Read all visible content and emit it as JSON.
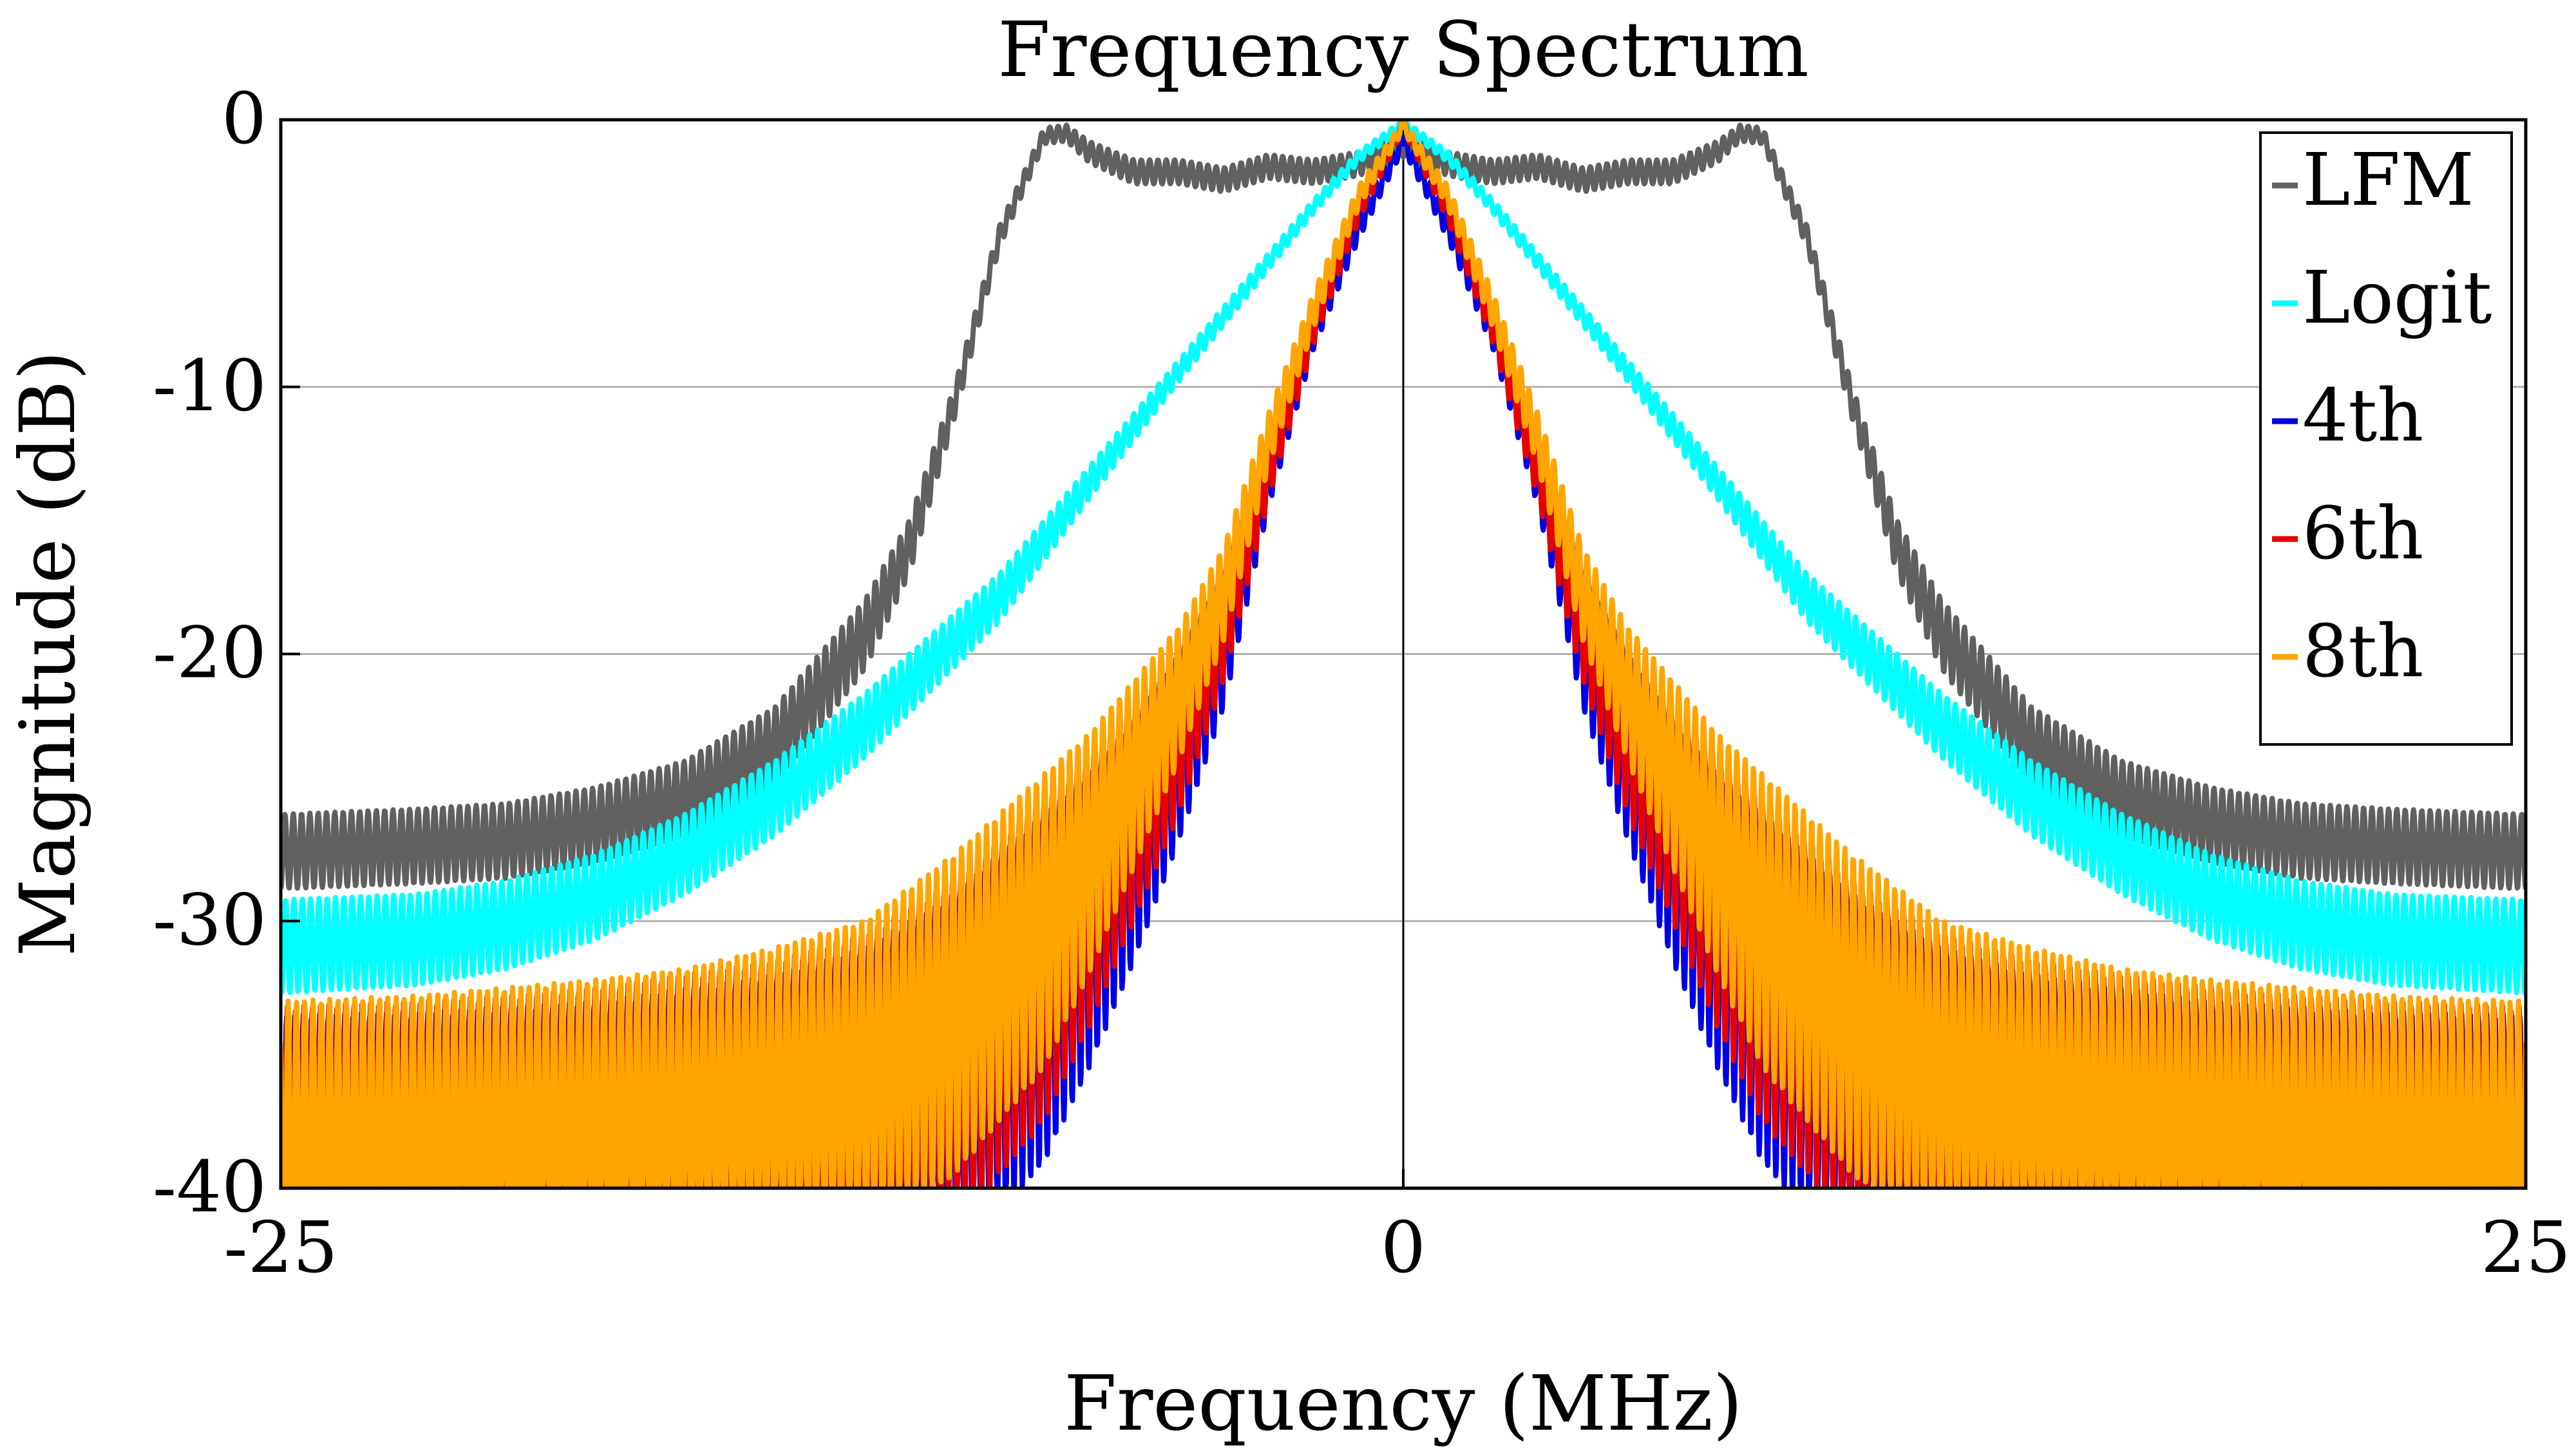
{
  "chart_data": {
    "type": "line",
    "title": "Frequency Spectrum",
    "xlabel": "Frequency (MHz)",
    "ylabel": "Magnitude (dB)",
    "xlim": [
      -25,
      25
    ],
    "ylim": [
      -40,
      0
    ],
    "xticks": [
      -25,
      0,
      25
    ],
    "xtick_labels": [
      "-25",
      "0",
      "25"
    ],
    "yticks": [
      0,
      -10,
      -20,
      -30,
      -40
    ],
    "ytick_labels": [
      "0",
      "-10",
      "-20",
      "-30",
      "-40"
    ],
    "grid": "horizontal",
    "zero_line": "vertical at 0",
    "legend_position": "top-right",
    "series": [
      {
        "name": "LFM",
        "color": "#606060",
        "envelope": {
          "x": [
            0,
            1,
            2,
            3,
            4,
            5,
            6,
            7,
            7.5,
            8,
            9,
            10,
            11,
            12,
            13,
            14,
            15,
            16,
            18,
            20,
            22,
            25
          ],
          "top": [
            -0.5,
            -1.2,
            -1.5,
            -1.3,
            -1.8,
            -1.5,
            -1.5,
            -0.8,
            -0.2,
            -0.3,
            -4,
            -10,
            -15,
            -18,
            -20,
            -22,
            -23,
            -24,
            -25,
            -25.6,
            -25.8,
            -26
          ],
          "ripple": [
            0.9,
            0.9,
            0.9,
            0.9,
            0.9,
            0.9,
            0.9,
            0.8,
            0.6,
            0.6,
            0.8,
            1.2,
            2.0,
            2.6,
            2.8,
            2.8,
            2.8,
            2.8,
            2.8,
            2.8,
            2.8,
            2.8
          ]
        }
      },
      {
        "name": "Logit",
        "color": "#00ffff",
        "envelope": {
          "x": [
            0,
            1,
            2,
            3,
            4,
            5,
            6,
            7,
            8,
            9,
            10,
            12,
            14,
            16,
            18,
            20,
            22,
            25
          ],
          "top": [
            0,
            -1.2,
            -3,
            -5,
            -7,
            -9,
            -11,
            -13,
            -15,
            -17,
            -18.5,
            -21.5,
            -24,
            -26,
            -27.5,
            -28.5,
            -29,
            -29.2
          ],
          "ripple": [
            0.3,
            0.4,
            0.5,
            0.6,
            0.7,
            0.8,
            1.0,
            1.2,
            1.5,
            1.8,
            2.0,
            2.4,
            2.8,
            3.0,
            3.2,
            3.3,
            3.4,
            3.5
          ]
        }
      },
      {
        "name": "4th",
        "color": "#0000e6",
        "envelope": {
          "x": [
            0,
            1,
            2,
            3,
            4,
            5,
            6,
            7,
            8,
            10,
            12,
            14,
            16,
            18,
            20,
            22,
            25
          ],
          "top": [
            -0.5,
            -3.5,
            -7,
            -12,
            -17,
            -20,
            -22.5,
            -24.5,
            -26,
            -29,
            -31,
            -32,
            -32.5,
            -33,
            -33.2,
            -33.4,
            -33.5
          ],
          "ripple": [
            0.6,
            1.0,
            1.6,
            2.5,
            5.0,
            7.0,
            9.0,
            11.0,
            13.0,
            14.0,
            14.0,
            14.0,
            14.0,
            14.0,
            14.0,
            14.0,
            14.0
          ]
        }
      },
      {
        "name": "6th",
        "color": "#e60000",
        "envelope": {
          "x": [
            0,
            1,
            2,
            3,
            4,
            5,
            6,
            7,
            8,
            10,
            12,
            14,
            16,
            18,
            20,
            22,
            25
          ],
          "top": [
            0,
            -3,
            -7,
            -12,
            -17,
            -20,
            -22,
            -24,
            -25.5,
            -28.5,
            -30.5,
            -31.5,
            -32,
            -32.5,
            -32.8,
            -33,
            -33.2
          ],
          "ripple": [
            0.4,
            0.8,
            1.4,
            2.2,
            4.0,
            6.0,
            8.0,
            10.0,
            12.0,
            13.0,
            13.0,
            13.0,
            13.0,
            13.0,
            13.0,
            13.0,
            13.0
          ]
        }
      },
      {
        "name": "8th",
        "color": "#ffa500",
        "envelope": {
          "x": [
            0,
            1,
            2,
            3,
            4,
            5,
            6,
            7,
            8,
            10,
            12,
            14,
            16,
            18,
            20,
            22,
            25
          ],
          "top": [
            0,
            -2.5,
            -6.5,
            -11,
            -16,
            -19,
            -21,
            -23,
            -24.5,
            -27.5,
            -30,
            -31,
            -31.8,
            -32.2,
            -32.5,
            -32.8,
            -33
          ],
          "ripple": [
            0.4,
            0.8,
            1.3,
            2.0,
            3.5,
            5.0,
            7.0,
            9.0,
            11.0,
            12.0,
            12.0,
            12.0,
            12.0,
            12.0,
            12.0,
            12.0,
            12.0
          ]
        }
      }
    ]
  }
}
